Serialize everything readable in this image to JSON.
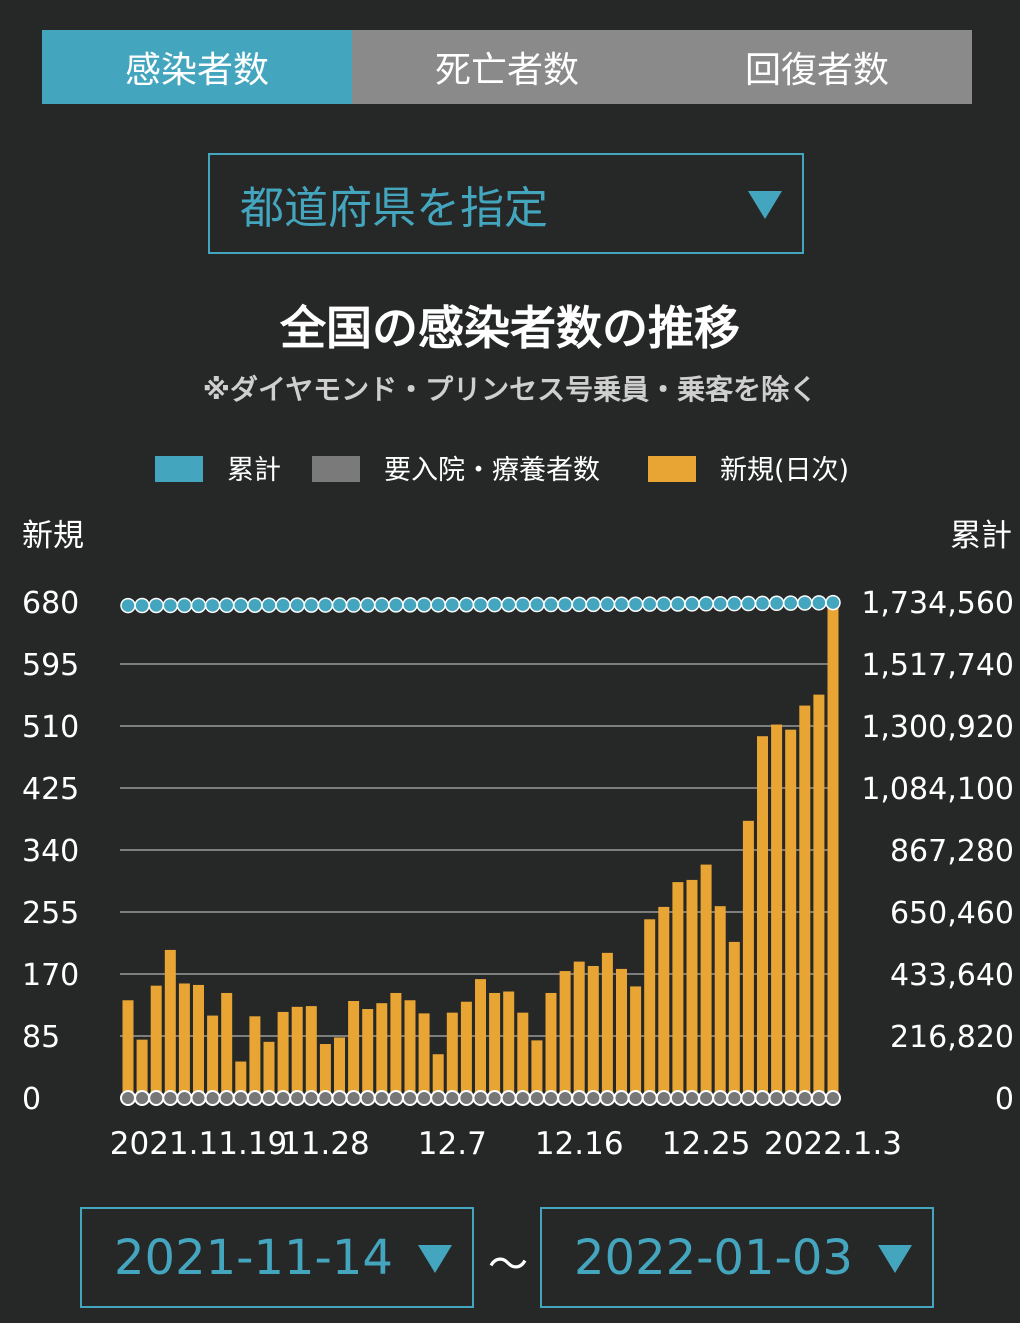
{
  "tabs": [
    {
      "label": "感染者数",
      "active": true
    },
    {
      "label": "死亡者数",
      "active": false
    },
    {
      "label": "回復者数",
      "active": false
    }
  ],
  "prefecture_select": {
    "label": "都道府県を指定",
    "icon": "triangle-down-icon"
  },
  "date_range": {
    "start": "2021-11-14",
    "separator": "〜",
    "end": "2022-01-03"
  },
  "colors": {
    "accent": "#44a6be",
    "cumulative": "#44a6be",
    "hospitalized": "#7a7a7a",
    "new": "#e8a534",
    "inactive_tab": "#8a8a8a",
    "background": "#262727"
  },
  "chart_data": {
    "type": "bar",
    "title": "全国の感染者数の推移",
    "subtitle": "※ダイヤモンド・プリンセス号乗員・乗客を除く",
    "legend": [
      {
        "label": "累計",
        "color": "#44a6be"
      },
      {
        "label": "要入院・療養者数",
        "color": "#7a7a7a"
      },
      {
        "label": "新規(日次)",
        "color": "#e8a534"
      }
    ],
    "left_axis_label": "新規",
    "right_axis_label": "累計",
    "left_ticks": [
      "0",
      "85",
      "170",
      "255",
      "340",
      "425",
      "510",
      "595",
      "680"
    ],
    "right_ticks": [
      "0",
      "216,820",
      "433,640",
      "650,460",
      "867,280",
      "1,084,100",
      "1,300,920",
      "1,517,740",
      "1,734,560"
    ],
    "ylim_left": [
      0,
      680
    ],
    "ylim_right": [
      0,
      1734560
    ],
    "x_tick_labels": [
      "2021.11.19",
      "11.28",
      "12.7",
      "12.16",
      "12.25",
      "2022.1.3"
    ],
    "x_tick_index": [
      5,
      14,
      23,
      32,
      41,
      50
    ],
    "start_date": "2021-11-14",
    "end_date": "2022-01-03",
    "series": [
      {
        "name": "新規(日次)",
        "kind": "bar",
        "values": [
          134,
          80,
          154,
          203,
          157,
          155,
          113,
          144,
          50,
          112,
          77,
          118,
          125,
          126,
          74,
          83,
          133,
          122,
          130,
          144,
          134,
          116,
          60,
          117,
          132,
          163,
          144,
          146,
          117,
          79,
          144,
          174,
          187,
          181,
          199,
          177,
          153,
          245,
          262,
          296,
          299,
          320,
          263,
          214,
          380,
          496,
          512,
          505,
          538,
          553,
          680
        ]
      },
      {
        "name": "累計",
        "kind": "dots",
        "values": [
          1722100,
          1722180,
          1722334,
          1722537,
          1722694,
          1722849,
          1722962,
          1723106,
          1723156,
          1723268,
          1723345,
          1723463,
          1723588,
          1723714,
          1723788,
          1723871,
          1724004,
          1724126,
          1724256,
          1724400,
          1724534,
          1724650,
          1724710,
          1724827,
          1724959,
          1725122,
          1725266,
          1725412,
          1725529,
          1725608,
          1725752,
          1725926,
          1726113,
          1726294,
          1726493,
          1726670,
          1726823,
          1727068,
          1727330,
          1727626,
          1727925,
          1728245,
          1728508,
          1728722,
          1729102,
          1729598,
          1730110,
          1730615,
          1731153,
          1731706,
          1732386
        ]
      },
      {
        "name": "要入院・療養者数",
        "kind": "dots",
        "values": [
          0,
          0,
          0,
          0,
          0,
          0,
          0,
          0,
          0,
          0,
          0,
          0,
          0,
          0,
          0,
          0,
          0,
          0,
          0,
          0,
          0,
          0,
          0,
          0,
          0,
          0,
          0,
          0,
          0,
          0,
          0,
          0,
          0,
          0,
          0,
          0,
          0,
          0,
          0,
          0,
          0,
          0,
          0,
          0,
          0,
          0,
          0,
          0,
          0,
          0,
          0
        ]
      }
    ]
  }
}
